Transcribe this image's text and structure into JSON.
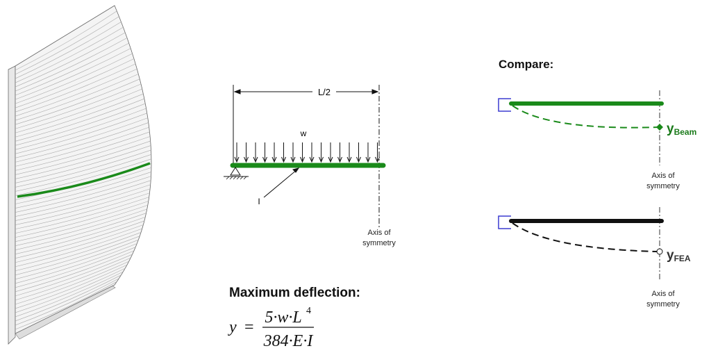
{
  "beam_diagram": {
    "span_label": "L/2",
    "load_label": "w",
    "inertia_label": "I",
    "axis_label": [
      "Axis of",
      "symmetry"
    ]
  },
  "formula": {
    "title": "Maximum deflection:",
    "lhs": "y",
    "equals": "=",
    "numerator": "5·w·L",
    "numerator_exponent": "4",
    "denominator": "384·E·I"
  },
  "compare": {
    "title": "Compare:",
    "beam": {
      "symbol": "y",
      "subscript": "Beam",
      "axis_label": [
        "Axis of",
        "symmetry"
      ]
    },
    "fea": {
      "symbol": "y",
      "subscript": "FEA",
      "axis_label": [
        "Axis of",
        "symmetry"
      ]
    }
  }
}
